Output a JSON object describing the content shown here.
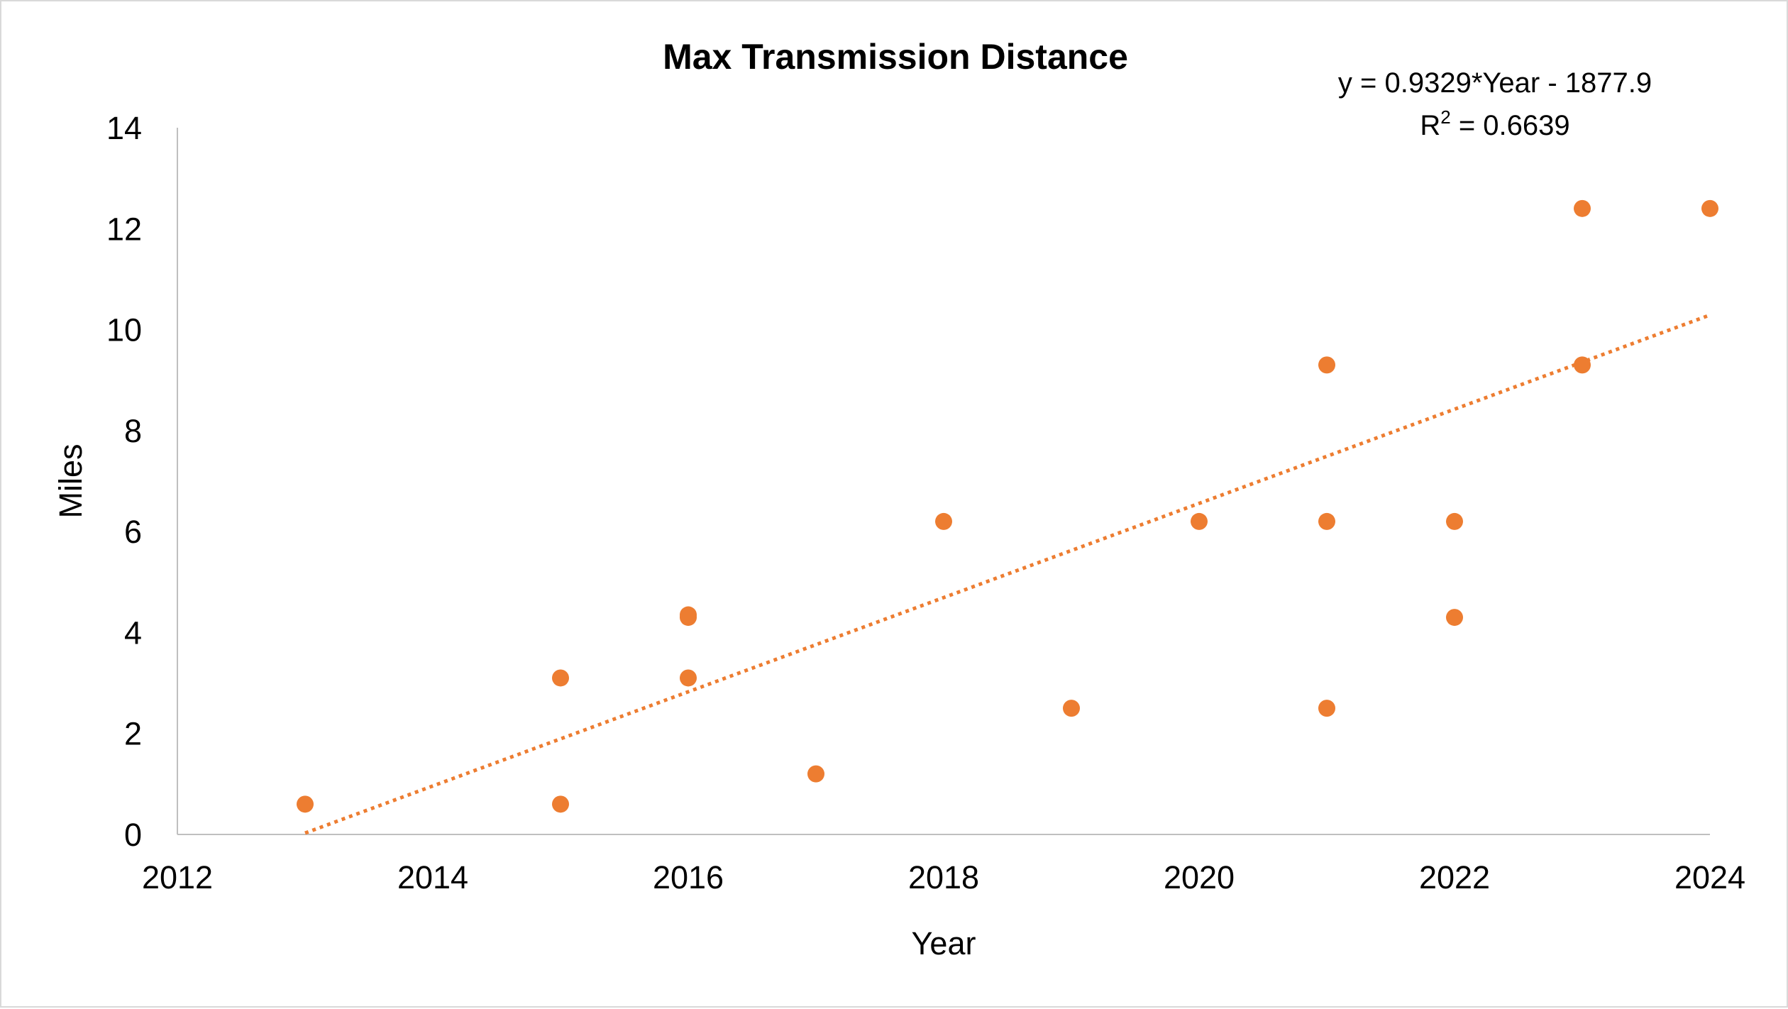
{
  "chart_data": {
    "type": "scatter",
    "title": "Max Transmission Distance",
    "xlabel": "Year",
    "ylabel": "Miles",
    "xlim": [
      2012,
      2024
    ],
    "ylim": [
      0,
      14
    ],
    "xticks": [
      "2012",
      "2014",
      "2016",
      "2018",
      "2020",
      "2022",
      "2024"
    ],
    "yticks": [
      "0",
      "2",
      "4",
      "6",
      "8",
      "10",
      "12",
      "14"
    ],
    "grid": false,
    "marker_color": "#ED7D31",
    "series": [
      {
        "points": [
          {
            "x": 2013,
            "y": 0.6
          },
          {
            "x": 2015,
            "y": 0.6
          },
          {
            "x": 2015,
            "y": 3.1
          },
          {
            "x": 2016,
            "y": 3.1
          },
          {
            "x": 2016,
            "y": 4.3
          },
          {
            "x": 2016,
            "y": 4.35
          },
          {
            "x": 2017,
            "y": 1.2
          },
          {
            "x": 2018,
            "y": 6.2
          },
          {
            "x": 2019,
            "y": 2.5
          },
          {
            "x": 2020,
            "y": 6.2
          },
          {
            "x": 2021,
            "y": 2.5
          },
          {
            "x": 2021,
            "y": 6.2
          },
          {
            "x": 2021,
            "y": 9.3
          },
          {
            "x": 2022,
            "y": 4.3
          },
          {
            "x": 2022,
            "y": 6.2
          },
          {
            "x": 2023,
            "y": 9.3
          },
          {
            "x": 2023,
            "y": 12.4
          },
          {
            "x": 2024,
            "y": 12.4
          }
        ]
      }
    ],
    "trendline": {
      "type": "linear",
      "slope": 0.9329,
      "intercept": -1877.9,
      "x_range": [
        2013,
        2024
      ],
      "style": "dotted",
      "equation_label": "y = 0.9329*Year - 1877.9",
      "r2_prefix": "R",
      "r2_sup": "2",
      "r2_value": " = 0.6639"
    }
  }
}
